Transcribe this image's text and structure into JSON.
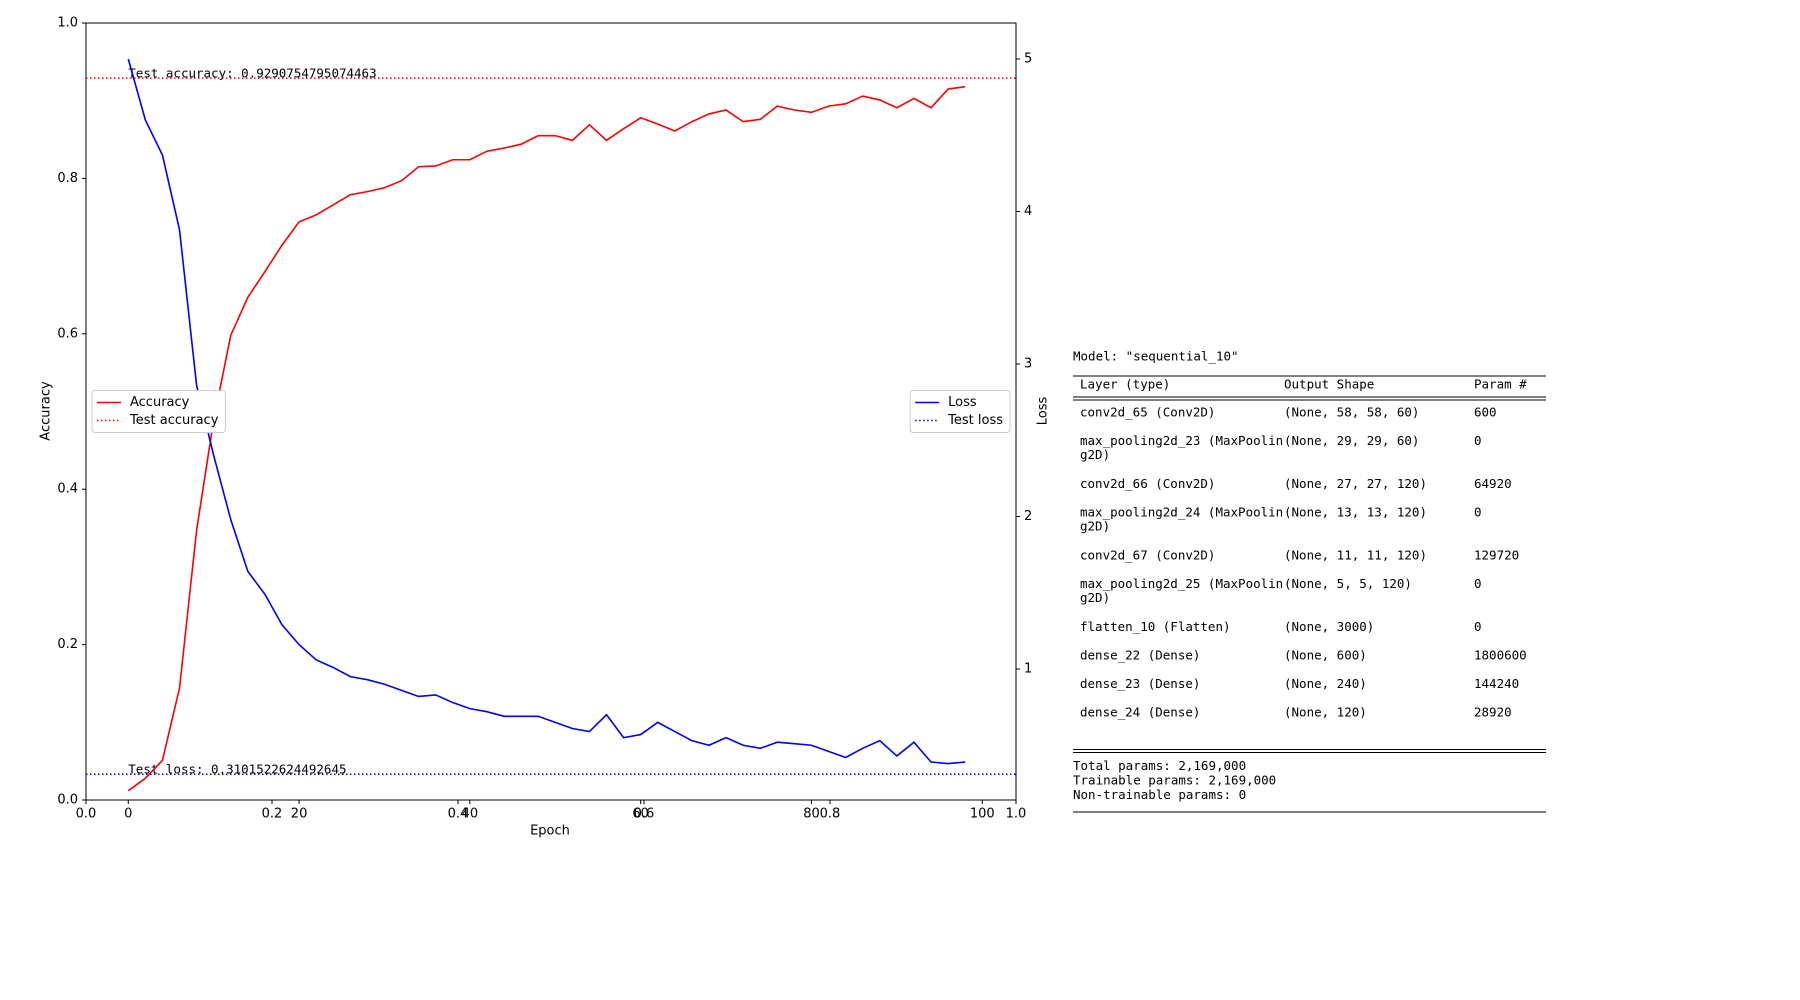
{
  "chart_data": {
    "type": "line",
    "xlabel": "Epoch",
    "ylabel": "Accuracy",
    "y2label": "Loss",
    "xlim": [
      0,
      1
    ],
    "xticks": [
      {
        "value": 0,
        "label": "0.0"
      },
      0.2,
      0.4,
      0.6,
      0.8,
      {
        "value": 1,
        "label": "1.0"
      }
    ],
    "ylim": [
      0,
      1
    ],
    "yticks": [
      {
        "value": 0,
        "label": "0.0"
      },
      0.2,
      0.4,
      0.6,
      0.8,
      {
        "value": 1,
        "label": "1.0"
      }
    ],
    "epoch_xlim": [
      -4.95,
      103.95
    ],
    "epoch_xticks": [
      0,
      20,
      40,
      60,
      80,
      100
    ],
    "y2lim": [
      0.141,
      5.236
    ],
    "y2ticks": [
      1,
      2,
      3,
      4,
      5
    ],
    "x": [
      0,
      2,
      4,
      6,
      8,
      10,
      12,
      14,
      16,
      18,
      20,
      22,
      24,
      26,
      28,
      30,
      32,
      34,
      36,
      38,
      40,
      42,
      44,
      46,
      48,
      50,
      52,
      54,
      56,
      58,
      60,
      62,
      64,
      66,
      68,
      70,
      72,
      74,
      76,
      78,
      80,
      82,
      84,
      86,
      88,
      90,
      92,
      94,
      96,
      98
    ],
    "series": [
      {
        "name": "Accuracy",
        "color": "#ff0000",
        "axis": "y",
        "legend": "center left",
        "values": [
          0.012,
          0.028,
          0.051,
          0.144,
          0.347,
          0.489,
          0.598,
          0.647,
          0.68,
          0.714,
          0.744,
          0.753,
          0.766,
          0.779,
          0.783,
          0.788,
          0.797,
          0.815,
          0.816,
          0.824,
          0.824,
          0.835,
          0.839,
          0.844,
          0.855,
          0.855,
          0.849,
          0.869,
          0.849,
          0.864,
          0.878,
          0.87,
          0.861,
          0.873,
          0.883,
          0.888,
          0.873,
          0.876,
          0.893,
          0.888,
          0.885,
          0.893,
          0.896,
          0.906,
          0.901,
          0.891,
          0.903,
          0.891,
          0.915,
          0.918
        ]
      },
      {
        "name": "Loss",
        "color": "#0000ff",
        "axis": "y2",
        "legend": "center right",
        "values": [
          5.0,
          4.6,
          4.37,
          3.88,
          2.86,
          2.4,
          1.98,
          1.64,
          1.49,
          1.29,
          1.16,
          1.06,
          1.01,
          0.95,
          0.93,
          0.9,
          0.86,
          0.82,
          0.83,
          0.78,
          0.74,
          0.72,
          0.69,
          0.69,
          0.69,
          0.65,
          0.61,
          0.59,
          0.7,
          0.55,
          0.57,
          0.65,
          0.59,
          0.53,
          0.5,
          0.55,
          0.5,
          0.48,
          0.52,
          0.51,
          0.5,
          0.46,
          0.42,
          0.48,
          0.53,
          0.43,
          0.52,
          0.39,
          0.38,
          0.39
        ]
      }
    ],
    "reference_lines": [
      {
        "name": "Test accuracy",
        "color": "#ff0000",
        "axis": "y",
        "legend": "center left",
        "value": 0.9290754795074463,
        "annotation": "Test accuracy: 0.9290754795074463"
      },
      {
        "name": "Test loss",
        "color": "#0000ff",
        "axis": "y2",
        "legend": "center right",
        "value": 0.3101522624492645,
        "annotation": "Test loss: 0.3101522624492645"
      }
    ]
  },
  "model_summary": {
    "title": "Model: \"sequential_10\"",
    "headers": [
      "Layer (type)",
      "Output Shape",
      "Param #"
    ],
    "rows": [
      {
        "layer": [
          "conv2d_65 (Conv2D)"
        ],
        "output_shape": "(None, 58, 58, 60)",
        "params": 600
      },
      {
        "layer": [
          "max_pooling2d_23 (MaxPoolin",
          "g2D)"
        ],
        "output_shape": "(None, 29, 29, 60)",
        "params": 0
      },
      {
        "layer": [
          "conv2d_66 (Conv2D)"
        ],
        "output_shape": "(None, 27, 27, 120)",
        "params": 64920
      },
      {
        "layer": [
          "max_pooling2d_24 (MaxPoolin",
          "g2D)"
        ],
        "output_shape": "(None, 13, 13, 120)",
        "params": 0
      },
      {
        "layer": [
          "conv2d_67 (Conv2D)"
        ],
        "output_shape": "(None, 11, 11, 120)",
        "params": 129720
      },
      {
        "layer": [
          "max_pooling2d_25 (MaxPoolin",
          "g2D)"
        ],
        "output_shape": "(None, 5, 5, 120)",
        "params": 0
      },
      {
        "layer": [
          "flatten_10 (Flatten)"
        ],
        "output_shape": "(None, 3000)",
        "params": 0
      },
      {
        "layer": [
          "dense_22 (Dense)"
        ],
        "output_shape": "(None, 600)",
        "params": 1800600
      },
      {
        "layer": [
          "dense_23 (Dense)"
        ],
        "output_shape": "(None, 240)",
        "params": 144240
      },
      {
        "layer": [
          "dense_24 (Dense)"
        ],
        "output_shape": "(None, 120)",
        "params": 28920
      }
    ],
    "totals": [
      "Total params: 2,169,000",
      "Trainable params: 2,169,000",
      "Non-trainable params: 0"
    ]
  }
}
